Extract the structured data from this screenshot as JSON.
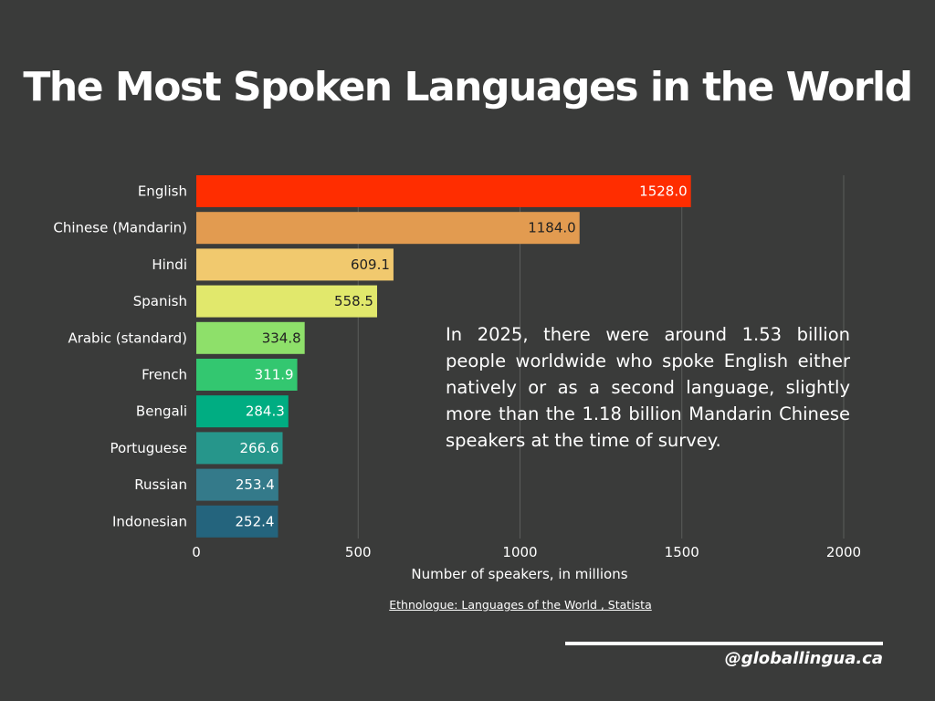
{
  "title": "The Most Spoken Languages in the World",
  "note": "In 2025, there were around 1.53 billion people worldwide who spoke English either natively or as a second language, slightly more than the 1.18 billion Mandarin Chinese speakers at the time of survey.",
  "source": "Ethnologue: Languages of the World , Statista",
  "handle": "@globallingua.ca",
  "chart_data": {
    "type": "bar",
    "orientation": "horizontal",
    "categories": [
      "English",
      "Chinese (Mandarin)",
      "Hindi",
      "Spanish",
      "Arabic (standard)",
      "French",
      "Bengali",
      "Portuguese",
      "Russian",
      "Indonesian"
    ],
    "values": [
      1528.0,
      1184.0,
      609.1,
      558.5,
      334.8,
      311.9,
      284.3,
      266.6,
      253.4,
      252.4
    ],
    "value_labels": [
      "1528.0",
      "1184.0",
      "609.1",
      "558.5",
      "334.8",
      "311.9",
      "284.3",
      "266.6",
      "253.4",
      "252.4"
    ],
    "colors": [
      "#ff2d00",
      "#e29b50",
      "#f1c96e",
      "#e1e86c",
      "#8ee06a",
      "#33c770",
      "#00ad82",
      "#26968b",
      "#347a8a",
      "#24647d"
    ],
    "value_label_colors": [
      "#ffffff",
      "#222222",
      "#222222",
      "#222222",
      "#222222",
      "#ffffff",
      "#ffffff",
      "#ffffff",
      "#ffffff",
      "#ffffff"
    ],
    "xlabel": "Number of speakers, in millions",
    "xlim": [
      0,
      2000
    ],
    "xticks": [
      0,
      500,
      1000,
      1500,
      2000
    ],
    "grid": true
  },
  "colors": {
    "background": "#3a3b3a",
    "gridline": "#5b5c5b",
    "text": "#ffffff"
  }
}
